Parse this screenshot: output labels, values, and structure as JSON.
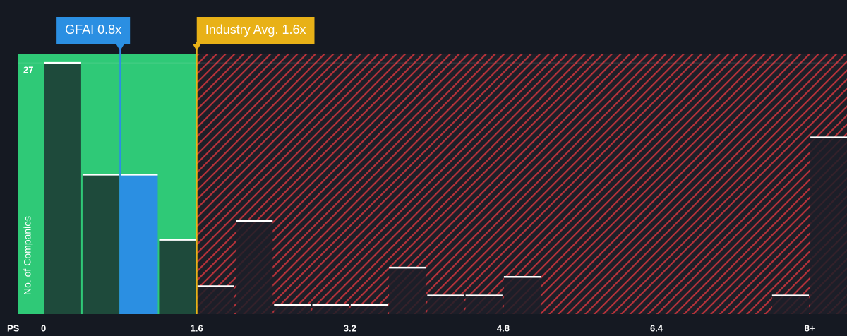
{
  "chart_data": {
    "type": "histogram",
    "x_label": "PS",
    "y_label": "No. of Companies",
    "bins": [
      0,
      0.4,
      0.8,
      1.2,
      1.6,
      2.0,
      2.4,
      2.8,
      3.2,
      3.6,
      4.0,
      4.4,
      4.8,
      5.2,
      5.6,
      6.0,
      6.4,
      6.8,
      7.2,
      7.6,
      8.0,
      8.4
    ],
    "values": [
      27,
      15,
      15,
      8,
      3,
      10,
      1,
      1,
      1,
      5,
      2,
      2,
      4,
      0,
      0,
      0,
      0,
      0,
      0,
      2,
      19
    ],
    "color": "#1e4a3b",
    "highlight_index": 2,
    "highlight_color": "#2b8fe2",
    "xlim": [
      -0.27,
      8.39
    ],
    "ylim": [
      0,
      28
    ],
    "xticks": [
      0,
      1.6,
      3.2,
      4.8,
      6.4,
      {
        "value": 8,
        "label": "8+"
      }
    ],
    "yticks": [
      27
    ],
    "annotations": [
      {
        "label": "GFAI 0.8x",
        "value": 0.8,
        "color": "#2b8fe2"
      },
      {
        "label": "Industry Avg. 1.6x",
        "value": 1.6,
        "color": "#e8b117"
      }
    ]
  }
}
